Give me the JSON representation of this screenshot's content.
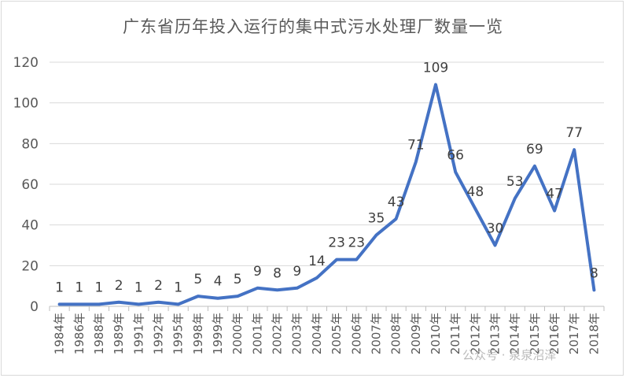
{
  "chart_data": {
    "type": "line",
    "title": "广东省历年投入运行的集中式污水处理厂数量一览",
    "categories": [
      "1984年",
      "1986年",
      "1988年",
      "1989年",
      "1991年",
      "1992年",
      "1995年",
      "1998年",
      "1999年",
      "2000年",
      "2001年",
      "2002年",
      "2003年",
      "2004年",
      "2005年",
      "2006年",
      "2007年",
      "2008年",
      "2009年",
      "2010年",
      "2011年",
      "2012年",
      "2013年",
      "2014年",
      "2015年",
      "2016年",
      "2017年",
      "2018年"
    ],
    "values": [
      1,
      1,
      1,
      2,
      1,
      2,
      1,
      5,
      4,
      5,
      9,
      8,
      9,
      14,
      23,
      23,
      35,
      43,
      71,
      109,
      66,
      48,
      30,
      53,
      69,
      47,
      77,
      8
    ],
    "ylim": [
      0,
      120
    ],
    "yticks": [
      0,
      20,
      40,
      60,
      80,
      100,
      120
    ],
    "grid": true,
    "line_color": "#4472c4",
    "grid_color": "#d9d9d9",
    "axis_color": "#bfbfbf"
  },
  "watermark": "公众号 · 泉泉沼泽"
}
